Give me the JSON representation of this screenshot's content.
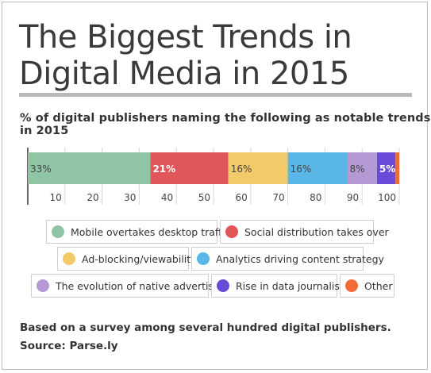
{
  "chart_data": {
    "type": "bar",
    "orientation": "horizontal-stacked",
    "title": "The Biggest Trends in Digital Media in 2015",
    "subtitle": "% of digital publishers naming the following as notable trends in 2015",
    "series": [
      {
        "name": "Mobile overtakes desktop traffic",
        "value": 33,
        "label": "33%",
        "color": "#8fc5a5"
      },
      {
        "name": "Social distribution takes over",
        "value": 21,
        "label": "21%",
        "color": "#e15759"
      },
      {
        "name": "Ad-blocking/viewability",
        "value": 16,
        "label": "16%",
        "color": "#f3ca6a"
      },
      {
        "name": "Analytics driving content strategy",
        "value": 16,
        "label": "16%",
        "color": "#5ab6e6"
      },
      {
        "name": "The evolution of native advertising",
        "value": 8,
        "label": "8%",
        "color": "#b39ad4"
      },
      {
        "name": "Rise in data journalism",
        "value": 5,
        "label": "5%",
        "color": "#6a4bd8"
      },
      {
        "name": "Other",
        "value": 1,
        "label": "",
        "color": "#f46a34"
      }
    ],
    "x_ticks": [
      "10",
      "20",
      "30",
      "40",
      "50",
      "60",
      "70",
      "80",
      "90",
      "100"
    ],
    "xlim": [
      0,
      100
    ],
    "grid": true,
    "legend_position": "below"
  },
  "footnote": {
    "line1": "Based on a survey among several hundred digital publishers.",
    "line2": "Source: Parse.ly"
  }
}
